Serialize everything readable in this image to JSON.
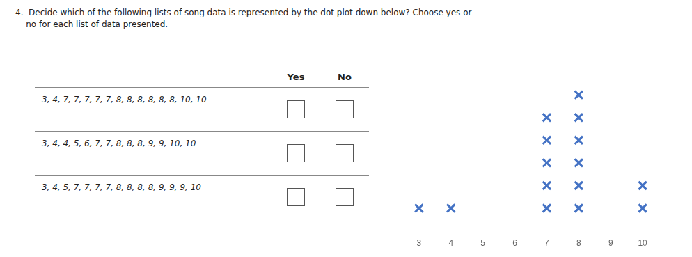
{
  "chart_data": {
    "type": "dot_plot",
    "title": [
      "4.  Decide which of the following lists of song data is represented by the dot plot down below? Choose yes or",
      "    no for each list of data presented."
    ],
    "x": [
      3,
      4,
      7,
      8,
      10
    ],
    "values": [
      1,
      1,
      5,
      6,
      2
    ],
    "color": "#4472C4",
    "marker": "x",
    "xlim": [
      2,
      11
    ],
    "xticks": [
      3,
      4,
      5,
      6,
      7,
      8,
      9,
      10
    ],
    "ylim": [
      0,
      8
    ],
    "tick_labels": "x",
    "grid": false,
    "annotations": {
      "columns": [
        "Yes",
        "No"
      ],
      "rows": [
        "3, 4, 7, 7, 7, 7, 7, 8, 8, 8, 8, 8, 8, 10, 10",
        "3, 4, 4, 5, 6, 7, 7, 8, 8, 8, 9, 9, 10, 10",
        "3, 4, 5, 7, 7, 7, 7, 8, 8, 8, 8, 9, 9, 9, 10"
      ]
    }
  }
}
